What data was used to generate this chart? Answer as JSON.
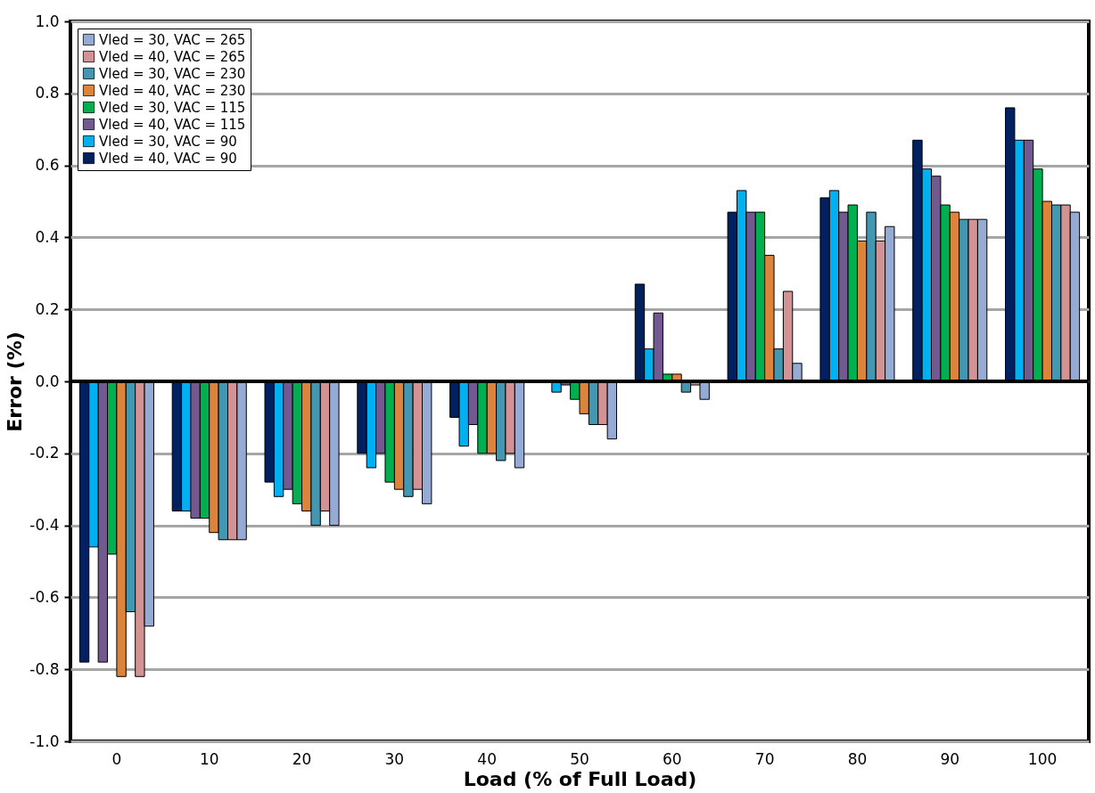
{
  "chart_data": {
    "type": "bar",
    "xlabel": "Load (% of Full Load)",
    "ylabel": "Error (%)",
    "categories": [
      "0",
      "10",
      "20",
      "30",
      "40",
      "50",
      "60",
      "70",
      "80",
      "90",
      "100"
    ],
    "series": [
      {
        "name": "Vled = 40, VAC = 90",
        "color": "#002060",
        "values": [
          -0.78,
          -0.36,
          -0.28,
          -0.2,
          -0.1,
          null,
          0.27,
          0.47,
          0.51,
          0.67,
          0.76
        ]
      },
      {
        "name": "Vled = 30, VAC = 90",
        "color": "#00b0f0",
        "values": [
          -0.46,
          -0.36,
          -0.32,
          -0.24,
          -0.18,
          -0.03,
          0.09,
          0.53,
          0.53,
          0.59,
          0.67
        ]
      },
      {
        "name": "Vled = 40, VAC = 115",
        "color": "#725990",
        "values": [
          -0.78,
          -0.38,
          -0.3,
          -0.2,
          -0.12,
          -0.01,
          0.19,
          0.47,
          0.47,
          0.57,
          0.67
        ]
      },
      {
        "name": "Vled = 30, VAC = 115",
        "color": "#00b050",
        "values": [
          -0.48,
          -0.38,
          -0.34,
          -0.28,
          -0.2,
          -0.05,
          0.02,
          0.47,
          0.49,
          0.49,
          0.59
        ]
      },
      {
        "name": "Vled = 40, VAC = 230",
        "color": "#dd843c",
        "values": [
          -0.82,
          -0.42,
          -0.36,
          -0.3,
          -0.2,
          -0.09,
          0.02,
          0.35,
          0.39,
          0.47,
          0.5
        ]
      },
      {
        "name": "Vled = 30, VAC = 230",
        "color": "#4397b0",
        "values": [
          -0.64,
          -0.44,
          -0.4,
          -0.32,
          -0.22,
          -0.12,
          -0.03,
          0.09,
          0.47,
          0.45,
          0.49
        ]
      },
      {
        "name": "Vled = 40, VAC = 265",
        "color": "#d39394",
        "values": [
          -0.82,
          -0.44,
          -0.36,
          -0.3,
          -0.2,
          -0.12,
          -0.01,
          0.25,
          0.39,
          0.45,
          0.49
        ]
      },
      {
        "name": "Vled = 30, VAC = 265",
        "color": "#95abd3",
        "values": [
          -0.68,
          -0.44,
          -0.4,
          -0.34,
          -0.24,
          -0.16,
          -0.05,
          0.05,
          0.43,
          0.45,
          0.47
        ]
      }
    ],
    "ylim": [
      -1.0,
      1.0
    ],
    "yticks": [
      {
        "value": -1.0,
        "label": "-1.0"
      },
      {
        "value": -0.8,
        "label": "-0.8"
      },
      {
        "value": -0.6,
        "label": "-0.6"
      },
      {
        "value": -0.4,
        "label": "-0.4"
      },
      {
        "value": -0.2,
        "label": "-0.2"
      },
      {
        "value": 0.0,
        "label": "0.0"
      },
      {
        "value": 0.2,
        "label": "0.2"
      },
      {
        "value": 0.4,
        "label": "0.4"
      },
      {
        "value": 0.6,
        "label": "0.6"
      },
      {
        "value": 0.8,
        "label": "0.8"
      },
      {
        "value": 1.0,
        "label": "1.0"
      }
    ],
    "ref_lines": [
      {
        "axis": "y",
        "value": 0.0,
        "color": "#000000"
      }
    ],
    "grid": "y",
    "legend": "top left"
  }
}
